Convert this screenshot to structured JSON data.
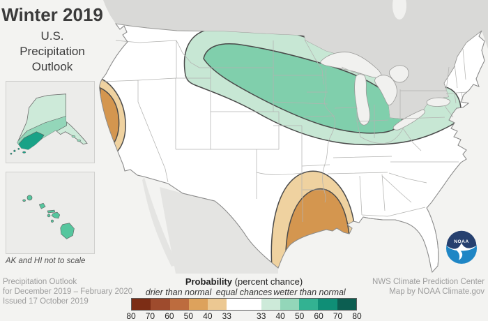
{
  "header": {
    "title": "Winter 2019",
    "subtitle_line1": "U.S.",
    "subtitle_line2": "Precipitation",
    "subtitle_line3": "Outlook"
  },
  "insets": {
    "note": "AK and HI not to scale"
  },
  "footer_left": {
    "line1": "Precipitation Outlook",
    "line2": "for December 2019 – February 2020",
    "line3": "Issued 17 October 2019"
  },
  "footer_right": {
    "line1": "NWS Climate Prediction Center",
    "line2": "Map by NOAA Climate.gov"
  },
  "noaa_logo": {
    "text": "NOAA"
  },
  "legend": {
    "title_bold": "Probability",
    "title_rest": " (percent chance)",
    "groups": [
      {
        "label": "drier than normal"
      },
      {
        "label": "equal chances"
      },
      {
        "label": "wetter than normal"
      }
    ],
    "segments": [
      {
        "color": "#7c2d15",
        "flex": 1
      },
      {
        "color": "#9e4b2d",
        "flex": 1
      },
      {
        "color": "#bd6c3e",
        "flex": 1
      },
      {
        "color": "#dda25c",
        "flex": 1
      },
      {
        "color": "#ecc892",
        "flex": 1
      },
      {
        "color": "#ffffff",
        "flex": 1.8
      },
      {
        "color": "#cdead9",
        "flex": 1
      },
      {
        "color": "#93d6b9",
        "flex": 1
      },
      {
        "color": "#33b292",
        "flex": 1
      },
      {
        "color": "#0f8e76",
        "flex": 1
      },
      {
        "color": "#0c5e51",
        "flex": 1
      }
    ],
    "ticks": [
      {
        "label": "80",
        "pos": 0
      },
      {
        "label": "70",
        "pos": 8.47
      },
      {
        "label": "60",
        "pos": 16.95
      },
      {
        "label": "50",
        "pos": 25.42
      },
      {
        "label": "40",
        "pos": 33.9
      },
      {
        "label": "33",
        "pos": 42.37
      },
      {
        "label": "33",
        "pos": 57.63
      },
      {
        "label": "40",
        "pos": 66.1
      },
      {
        "label": "50",
        "pos": 74.58
      },
      {
        "label": "60",
        "pos": 83.05
      },
      {
        "label": "70",
        "pos": 91.53
      },
      {
        "label": "80",
        "pos": 100
      }
    ]
  },
  "map_regions": [
    {
      "area": "Northern tier (Montana through Great Lakes to Northeast)",
      "outlook": "wetter than normal",
      "probability": "33-40%"
    },
    {
      "area": "Northern Plains / Upper Midwest core band",
      "outlook": "wetter than normal",
      "probability": "40-50%"
    },
    {
      "area": "Northern and central California coast",
      "outlook": "drier than normal",
      "probability": "33-40% outer, 40-50% core"
    },
    {
      "area": "Western Gulf Coast (Texas, Louisiana, Mississippi)",
      "outlook": "drier than normal",
      "probability": "33-40% outer, 40-50% core"
    },
    {
      "area": "Alaska",
      "outlook": "wetter than normal",
      "probability": "33-60%"
    },
    {
      "area": "Hawaii",
      "outlook": "wetter than normal",
      "probability": "40-50%"
    },
    {
      "area": "Remaining contiguous U.S.",
      "outlook": "equal chances",
      "probability": "33%"
    }
  ],
  "colors": {
    "background": "#f3f3f1",
    "canada": "#d9d9d7",
    "mexico": "#e4e4e2",
    "us_land": "#ffffff",
    "water": "#f1f1ef",
    "state_border": "#b3b3b1",
    "national_border": "#8c8c8c",
    "contour_outline": "#4a4a4a",
    "wet_outer": "#c7e7d4",
    "wet_inner": "#80cfac",
    "dry_outer": "#efd2a0",
    "dry_inner": "#d4964f",
    "ak_light": "#cdead9",
    "ak_mid": "#93d6b9",
    "ak_dark": "#19a287",
    "hi_green": "#56c69e",
    "logo_navy": "#26406f",
    "logo_blue": "#1f86c5"
  }
}
